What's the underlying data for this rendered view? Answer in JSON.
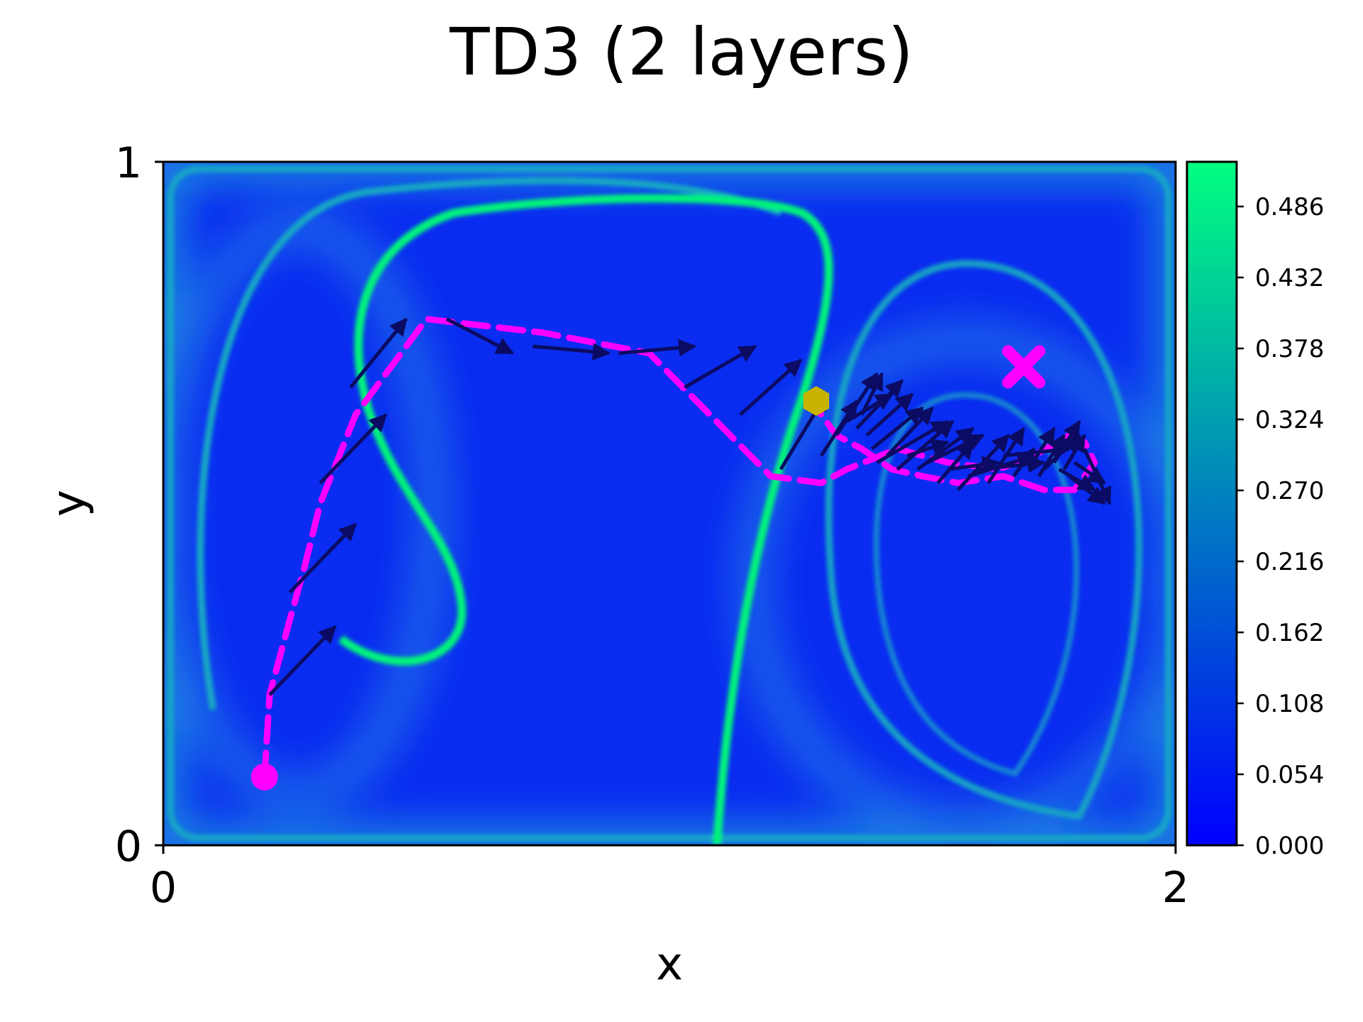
{
  "chart_data": {
    "type": "heatmap",
    "title": "TD3 (2 layers)",
    "xlabel": "x",
    "ylabel": "y",
    "xlim": [
      0,
      2
    ],
    "ylim": [
      0,
      1
    ],
    "x_ticks": [
      "0",
      "2"
    ],
    "y_ticks": [
      "0",
      "1"
    ],
    "colormap": {
      "name": "winter",
      "low": "#0000ff",
      "high": "#00ff80"
    },
    "colorbar": {
      "min": 0.0,
      "max": 0.52,
      "ticks": [
        "0.000",
        "0.054",
        "0.108",
        "0.162",
        "0.216",
        "0.270",
        "0.324",
        "0.378",
        "0.432",
        "0.486"
      ]
    },
    "trajectory": {
      "style": "dashed",
      "color": "#ff00ff",
      "points": [
        [
          0.2,
          0.1
        ],
        [
          0.21,
          0.22
        ],
        [
          0.25,
          0.33
        ],
        [
          0.28,
          0.41
        ],
        [
          0.31,
          0.5
        ],
        [
          0.38,
          0.63
        ],
        [
          0.52,
          0.77
        ],
        [
          0.75,
          0.75
        ],
        [
          0.96,
          0.72
        ],
        [
          1.12,
          0.6
        ],
        [
          1.2,
          0.54
        ],
        [
          1.3,
          0.53
        ],
        [
          1.35,
          0.55
        ],
        [
          1.45,
          0.58
        ],
        [
          1.55,
          0.56
        ],
        [
          1.65,
          0.55
        ],
        [
          1.72,
          0.57
        ],
        [
          1.79,
          0.6
        ],
        [
          1.82,
          0.59
        ],
        [
          1.84,
          0.56
        ],
        [
          1.8,
          0.52
        ],
        [
          1.74,
          0.52
        ],
        [
          1.66,
          0.54
        ],
        [
          1.57,
          0.53
        ],
        [
          1.5,
          0.54
        ],
        [
          1.44,
          0.55
        ],
        [
          1.38,
          0.58
        ],
        [
          1.33,
          0.6
        ],
        [
          1.31,
          0.62
        ],
        [
          1.28,
          0.65
        ]
      ]
    },
    "actions": {
      "color": "#0b0b63",
      "arrows": [
        [
          0.21,
          0.22,
          0.34,
          0.32
        ],
        [
          0.25,
          0.37,
          0.38,
          0.47
        ],
        [
          0.31,
          0.53,
          0.44,
          0.63
        ],
        [
          0.37,
          0.67,
          0.48,
          0.77
        ],
        [
          0.56,
          0.77,
          0.69,
          0.72
        ],
        [
          0.73,
          0.73,
          0.88,
          0.72
        ],
        [
          0.9,
          0.72,
          1.05,
          0.73
        ],
        [
          1.03,
          0.67,
          1.17,
          0.73
        ],
        [
          1.14,
          0.63,
          1.26,
          0.71
        ],
        [
          1.22,
          0.55,
          1.31,
          0.66
        ],
        [
          1.3,
          0.57,
          1.37,
          0.65
        ],
        [
          1.33,
          0.6,
          1.41,
          0.69
        ],
        [
          1.35,
          0.62,
          1.44,
          0.66
        ],
        [
          1.37,
          0.61,
          1.46,
          0.68
        ],
        [
          1.38,
          0.63,
          1.42,
          0.69
        ],
        [
          1.39,
          0.6,
          1.48,
          0.66
        ],
        [
          1.4,
          0.58,
          1.5,
          0.64
        ],
        [
          1.41,
          0.56,
          1.55,
          0.62
        ],
        [
          1.43,
          0.57,
          1.52,
          0.64
        ],
        [
          1.45,
          0.55,
          1.56,
          0.62
        ],
        [
          1.47,
          0.57,
          1.55,
          0.59
        ],
        [
          1.49,
          0.55,
          1.6,
          0.61
        ],
        [
          1.51,
          0.56,
          1.62,
          0.6
        ],
        [
          1.53,
          0.53,
          1.6,
          0.59
        ],
        [
          1.55,
          0.55,
          1.65,
          0.56
        ],
        [
          1.57,
          0.52,
          1.67,
          0.6
        ],
        [
          1.59,
          0.54,
          1.72,
          0.57
        ],
        [
          1.61,
          0.55,
          1.74,
          0.56
        ],
        [
          1.63,
          0.53,
          1.7,
          0.61
        ],
        [
          1.66,
          0.57,
          1.79,
          0.58
        ],
        [
          1.68,
          0.54,
          1.72,
          0.58
        ],
        [
          1.71,
          0.55,
          1.76,
          0.61
        ],
        [
          1.73,
          0.54,
          1.78,
          0.6
        ],
        [
          1.76,
          0.56,
          1.81,
          0.62
        ],
        [
          1.78,
          0.55,
          1.82,
          0.6
        ],
        [
          1.8,
          0.56,
          1.86,
          0.53
        ],
        [
          1.82,
          0.58,
          1.87,
          0.5
        ],
        [
          1.79,
          0.54,
          1.86,
          0.5
        ],
        [
          1.77,
          0.55,
          1.84,
          0.52
        ],
        [
          1.74,
          0.55,
          1.81,
          0.6
        ]
      ]
    },
    "start_marker": {
      "x": 0.2,
      "y": 0.1,
      "shape": "circle",
      "color": "#ff00ff"
    },
    "goal_marker": {
      "x": 1.7,
      "y": 0.7,
      "shape": "X",
      "color": "#ff00ff"
    },
    "current_marker": {
      "x": 1.29,
      "y": 0.65,
      "shape": "hexagon",
      "color": "#c8b400"
    }
  }
}
